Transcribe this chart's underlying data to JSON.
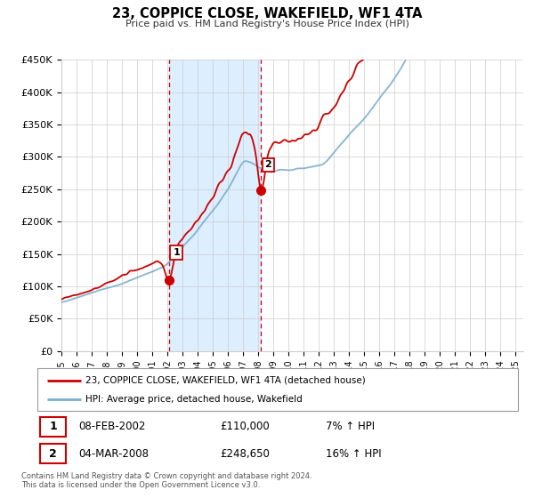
{
  "title": "23, COPPICE CLOSE, WAKEFIELD, WF1 4TA",
  "subtitle": "Price paid vs. HM Land Registry's House Price Index (HPI)",
  "ylim": [
    0,
    450000
  ],
  "yticks": [
    0,
    50000,
    100000,
    150000,
    200000,
    250000,
    300000,
    350000,
    400000,
    450000
  ],
  "ytick_labels": [
    "£0",
    "£50K",
    "£100K",
    "£150K",
    "£200K",
    "£250K",
    "£300K",
    "£350K",
    "£400K",
    "£450K"
  ],
  "xlim_start": 1995.0,
  "xlim_end": 2025.5,
  "sale1_x": 2002.107,
  "sale1_y": 110000,
  "sale1_label": "1",
  "sale1_date": "08-FEB-2002",
  "sale1_price": "£110,000",
  "sale1_hpi": "7% ↑ HPI",
  "sale2_x": 2008.17,
  "sale2_y": 248650,
  "sale2_label": "2",
  "sale2_date": "04-MAR-2008",
  "sale2_price": "£248,650",
  "sale2_hpi": "16% ↑ HPI",
  "red_color": "#cc0000",
  "blue_color": "#7aadcc",
  "shade_color": "#ddeeff",
  "grid_color": "#cccccc",
  "bg_color": "#ffffff",
  "legend_line1": "23, COPPICE CLOSE, WAKEFIELD, WF1 4TA (detached house)",
  "legend_line2": "HPI: Average price, detached house, Wakefield",
  "footer1": "Contains HM Land Registry data © Crown copyright and database right 2024.",
  "footer2": "This data is licensed under the Open Government Licence v3.0."
}
